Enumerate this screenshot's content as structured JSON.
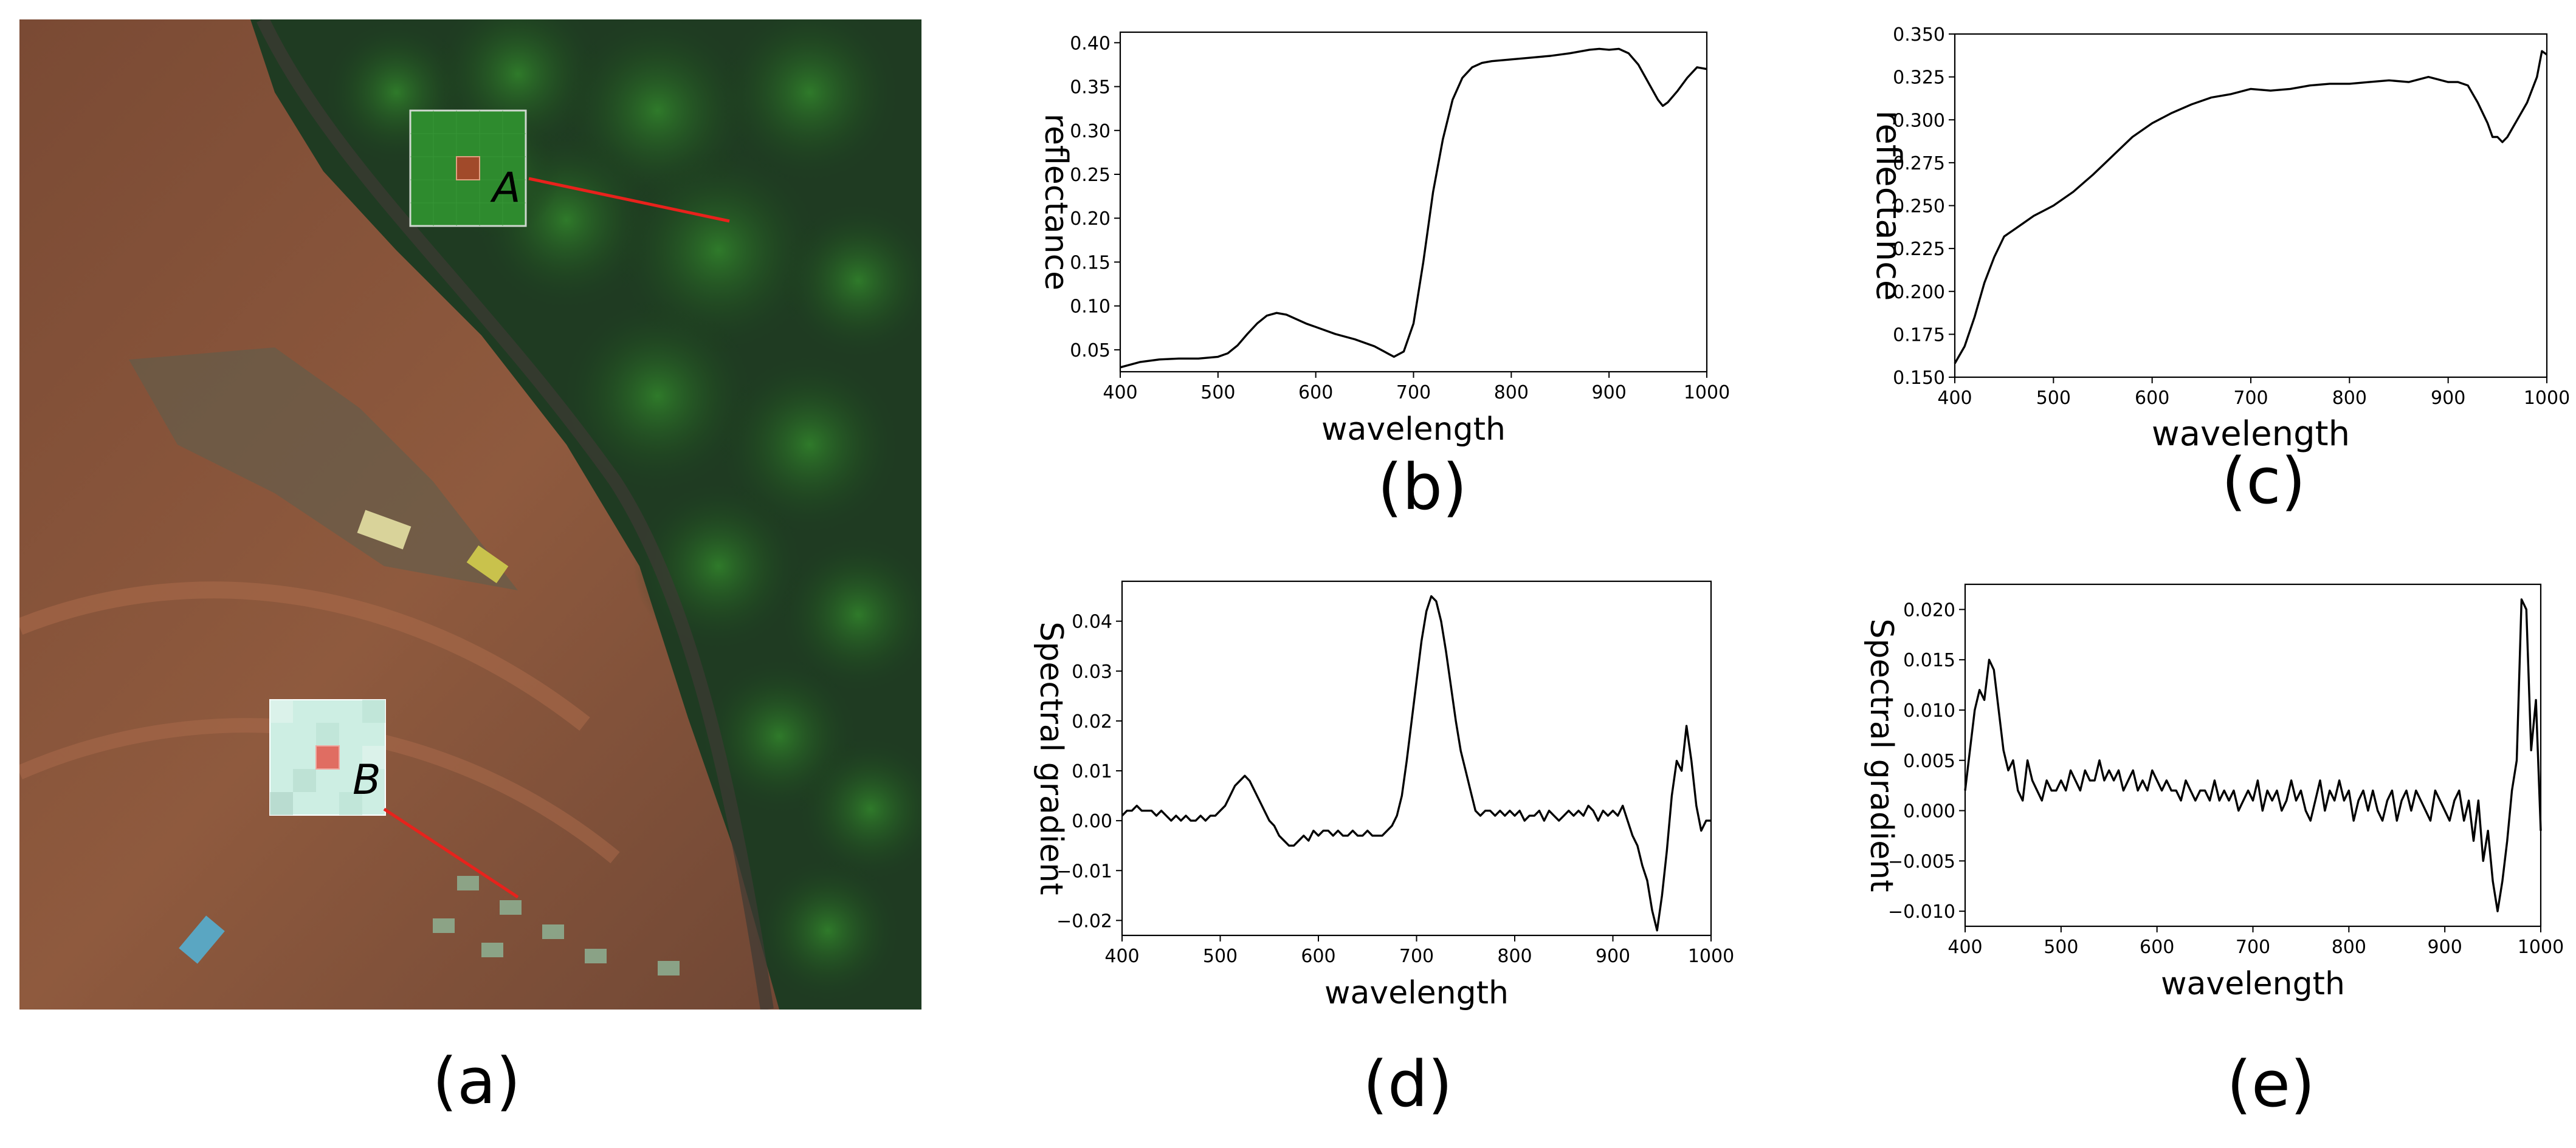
{
  "captions": {
    "a": "(a)",
    "b": "(b)",
    "c": "(c)",
    "d": "(d)",
    "e": "(e)"
  },
  "image_labels": {
    "patch_a": "A",
    "patch_b": "B"
  },
  "colors": {
    "line": "#000000",
    "pointer": "#e8221c",
    "vegetation_patch": "#2e8b2e",
    "soil_patch": "#cdeee3"
  },
  "chart_data": [
    {
      "id": "b",
      "type": "line",
      "xlabel": "wavelength",
      "ylabel": "reflectance",
      "xlim": [
        400,
        1000
      ],
      "ylim": [
        0.025,
        0.412
      ],
      "xticks": [
        400,
        500,
        600,
        700,
        800,
        900,
        1000
      ],
      "yticks": [
        0.05,
        0.1,
        0.15,
        0.2,
        0.25,
        0.3,
        0.35,
        0.4
      ],
      "ytick_labels": [
        "0.05",
        "0.10",
        "0.15",
        "0.20",
        "0.25",
        "0.30",
        "0.35",
        "0.40"
      ],
      "x": [
        400,
        420,
        440,
        460,
        480,
        500,
        510,
        520,
        530,
        540,
        550,
        560,
        570,
        580,
        590,
        600,
        620,
        640,
        660,
        670,
        680,
        690,
        700,
        710,
        720,
        730,
        740,
        750,
        760,
        770,
        780,
        800,
        820,
        840,
        860,
        880,
        890,
        900,
        910,
        920,
        930,
        940,
        950,
        955,
        960,
        970,
        980,
        990,
        1000
      ],
      "y": [
        0.03,
        0.036,
        0.039,
        0.04,
        0.04,
        0.042,
        0.046,
        0.055,
        0.068,
        0.08,
        0.089,
        0.092,
        0.09,
        0.085,
        0.08,
        0.076,
        0.068,
        0.062,
        0.054,
        0.048,
        0.042,
        0.048,
        0.08,
        0.15,
        0.23,
        0.29,
        0.335,
        0.36,
        0.372,
        0.377,
        0.379,
        0.381,
        0.383,
        0.385,
        0.388,
        0.392,
        0.393,
        0.392,
        0.393,
        0.388,
        0.375,
        0.355,
        0.335,
        0.328,
        0.332,
        0.345,
        0.36,
        0.372,
        0.37
      ]
    },
    {
      "id": "c",
      "type": "line",
      "xlabel": "wavelength",
      "ylabel": "reflectance",
      "xlim": [
        400,
        1000
      ],
      "ylim": [
        0.15,
        0.35
      ],
      "xticks": [
        400,
        500,
        600,
        700,
        800,
        900,
        1000
      ],
      "yticks": [
        0.15,
        0.175,
        0.2,
        0.225,
        0.25,
        0.275,
        0.3,
        0.325,
        0.35
      ],
      "ytick_labels": [
        "0.150",
        "0.175",
        "0.200",
        "0.225",
        "0.250",
        "0.275",
        "0.300",
        "0.325",
        "0.350"
      ],
      "x": [
        400,
        410,
        420,
        430,
        440,
        450,
        460,
        470,
        480,
        490,
        500,
        520,
        540,
        560,
        580,
        600,
        620,
        640,
        660,
        680,
        700,
        720,
        740,
        760,
        780,
        800,
        820,
        840,
        860,
        880,
        900,
        910,
        920,
        930,
        940,
        945,
        950,
        955,
        960,
        965,
        970,
        980,
        990,
        995,
        1000
      ],
      "y": [
        0.158,
        0.168,
        0.185,
        0.205,
        0.22,
        0.232,
        0.236,
        0.24,
        0.244,
        0.247,
        0.25,
        0.258,
        0.268,
        0.279,
        0.29,
        0.298,
        0.304,
        0.309,
        0.313,
        0.315,
        0.318,
        0.317,
        0.318,
        0.32,
        0.321,
        0.321,
        0.322,
        0.323,
        0.322,
        0.325,
        0.322,
        0.322,
        0.32,
        0.31,
        0.298,
        0.29,
        0.29,
        0.287,
        0.29,
        0.295,
        0.3,
        0.31,
        0.325,
        0.34,
        0.338
      ]
    },
    {
      "id": "d",
      "type": "line",
      "xlabel": "wavelength",
      "ylabel": "Spectral gradient",
      "xlim": [
        400,
        1000
      ],
      "ylim": [
        -0.023,
        0.048
      ],
      "xticks": [
        400,
        500,
        600,
        700,
        800,
        900,
        1000
      ],
      "yticks": [
        -0.02,
        -0.01,
        0.0,
        0.01,
        0.02,
        0.03,
        0.04
      ],
      "ytick_labels": [
        "−0.02",
        "−0.01",
        "0.00",
        "0.01",
        "0.02",
        "0.03",
        "0.04"
      ],
      "x": [
        400,
        405,
        410,
        415,
        420,
        425,
        430,
        435,
        440,
        445,
        450,
        455,
        460,
        465,
        470,
        475,
        480,
        485,
        490,
        495,
        500,
        505,
        510,
        515,
        520,
        525,
        530,
        535,
        540,
        545,
        550,
        555,
        560,
        565,
        570,
        575,
        580,
        585,
        590,
        595,
        600,
        605,
        610,
        615,
        620,
        625,
        630,
        635,
        640,
        645,
        650,
        655,
        660,
        665,
        670,
        675,
        680,
        685,
        690,
        695,
        700,
        705,
        710,
        715,
        720,
        725,
        730,
        735,
        740,
        745,
        750,
        755,
        760,
        765,
        770,
        775,
        780,
        785,
        790,
        795,
        800,
        805,
        810,
        815,
        820,
        825,
        830,
        835,
        840,
        845,
        850,
        855,
        860,
        865,
        870,
        875,
        880,
        885,
        890,
        895,
        900,
        905,
        910,
        915,
        920,
        925,
        930,
        935,
        940,
        945,
        950,
        955,
        960,
        965,
        970,
        975,
        980,
        985,
        990,
        995,
        1000
      ],
      "y": [
        0.001,
        0.002,
        0.002,
        0.003,
        0.002,
        0.002,
        0.002,
        0.001,
        0.002,
        0.001,
        0.0,
        0.001,
        0.0,
        0.001,
        0.0,
        0.0,
        0.001,
        0.0,
        0.001,
        0.001,
        0.002,
        0.003,
        0.005,
        0.007,
        0.008,
        0.009,
        0.008,
        0.006,
        0.004,
        0.002,
        0.0,
        -0.001,
        -0.003,
        -0.004,
        -0.005,
        -0.005,
        -0.004,
        -0.003,
        -0.004,
        -0.002,
        -0.003,
        -0.002,
        -0.002,
        -0.003,
        -0.002,
        -0.003,
        -0.003,
        -0.002,
        -0.003,
        -0.003,
        -0.002,
        -0.003,
        -0.003,
        -0.003,
        -0.002,
        -0.001,
        0.001,
        0.005,
        0.012,
        0.02,
        0.028,
        0.036,
        0.042,
        0.045,
        0.044,
        0.04,
        0.034,
        0.027,
        0.02,
        0.014,
        0.01,
        0.006,
        0.002,
        0.001,
        0.002,
        0.002,
        0.001,
        0.002,
        0.001,
        0.002,
        0.001,
        0.002,
        0.0,
        0.001,
        0.001,
        0.002,
        0.0,
        0.002,
        0.001,
        0.0,
        0.001,
        0.002,
        0.001,
        0.002,
        0.001,
        0.003,
        0.002,
        0.0,
        0.002,
        0.001,
        0.002,
        0.001,
        0.003,
        0.0,
        -0.003,
        -0.005,
        -0.009,
        -0.012,
        -0.018,
        -0.022,
        -0.015,
        -0.006,
        0.005,
        0.012,
        0.01,
        0.019,
        0.012,
        0.003,
        -0.002,
        0.0,
        0.0
      ]
    },
    {
      "id": "e",
      "type": "line",
      "xlabel": "wavelength",
      "ylabel": "Spectral gradient",
      "xlim": [
        400,
        1000
      ],
      "ylim": [
        -0.0115,
        0.0225
      ],
      "xticks": [
        400,
        500,
        600,
        700,
        800,
        900,
        1000
      ],
      "yticks": [
        -0.01,
        -0.005,
        0.0,
        0.005,
        0.01,
        0.015,
        0.02
      ],
      "ytick_labels": [
        "−0.010",
        "−0.005",
        "0.000",
        "0.005",
        "0.010",
        "0.015",
        "0.020"
      ],
      "x": [
        400,
        405,
        410,
        415,
        420,
        425,
        430,
        435,
        440,
        445,
        450,
        455,
        460,
        465,
        470,
        475,
        480,
        485,
        490,
        495,
        500,
        505,
        510,
        515,
        520,
        525,
        530,
        535,
        540,
        545,
        550,
        555,
        560,
        565,
        570,
        575,
        580,
        585,
        590,
        595,
        600,
        605,
        610,
        615,
        620,
        625,
        630,
        635,
        640,
        645,
        650,
        655,
        660,
        665,
        670,
        675,
        680,
        685,
        690,
        695,
        700,
        705,
        710,
        715,
        720,
        725,
        730,
        735,
        740,
        745,
        750,
        755,
        760,
        765,
        770,
        775,
        780,
        785,
        790,
        795,
        800,
        805,
        810,
        815,
        820,
        825,
        830,
        835,
        840,
        845,
        850,
        855,
        860,
        865,
        870,
        875,
        880,
        885,
        890,
        895,
        900,
        905,
        910,
        915,
        920,
        925,
        930,
        935,
        940,
        945,
        950,
        955,
        960,
        965,
        970,
        975,
        980,
        985,
        990,
        995,
        1000
      ],
      "y": [
        0.002,
        0.006,
        0.01,
        0.012,
        0.011,
        0.015,
        0.014,
        0.01,
        0.006,
        0.004,
        0.005,
        0.002,
        0.001,
        0.005,
        0.003,
        0.002,
        0.001,
        0.003,
        0.002,
        0.002,
        0.003,
        0.002,
        0.004,
        0.003,
        0.002,
        0.004,
        0.003,
        0.003,
        0.005,
        0.003,
        0.004,
        0.003,
        0.004,
        0.002,
        0.003,
        0.004,
        0.002,
        0.003,
        0.002,
        0.004,
        0.003,
        0.002,
        0.003,
        0.002,
        0.002,
        0.001,
        0.003,
        0.002,
        0.001,
        0.002,
        0.002,
        0.001,
        0.003,
        0.001,
        0.002,
        0.001,
        0.002,
        0.0,
        0.001,
        0.002,
        0.001,
        0.003,
        0.0,
        0.002,
        0.001,
        0.002,
        0.0,
        0.001,
        0.003,
        0.001,
        0.002,
        0.0,
        -0.001,
        0.001,
        0.003,
        0.0,
        0.002,
        0.001,
        0.003,
        0.001,
        0.002,
        -0.001,
        0.001,
        0.002,
        0.0,
        0.002,
        0.0,
        -0.001,
        0.001,
        0.002,
        -0.001,
        0.001,
        0.002,
        0.0,
        0.002,
        0.001,
        0.0,
        -0.001,
        0.002,
        0.001,
        0.0,
        -0.001,
        0.001,
        0.002,
        -0.001,
        0.001,
        -0.003,
        0.001,
        -0.005,
        -0.002,
        -0.007,
        -0.01,
        -0.007,
        -0.003,
        0.002,
        0.005,
        0.021,
        0.02,
        0.006,
        0.011,
        -0.002
      ]
    }
  ]
}
